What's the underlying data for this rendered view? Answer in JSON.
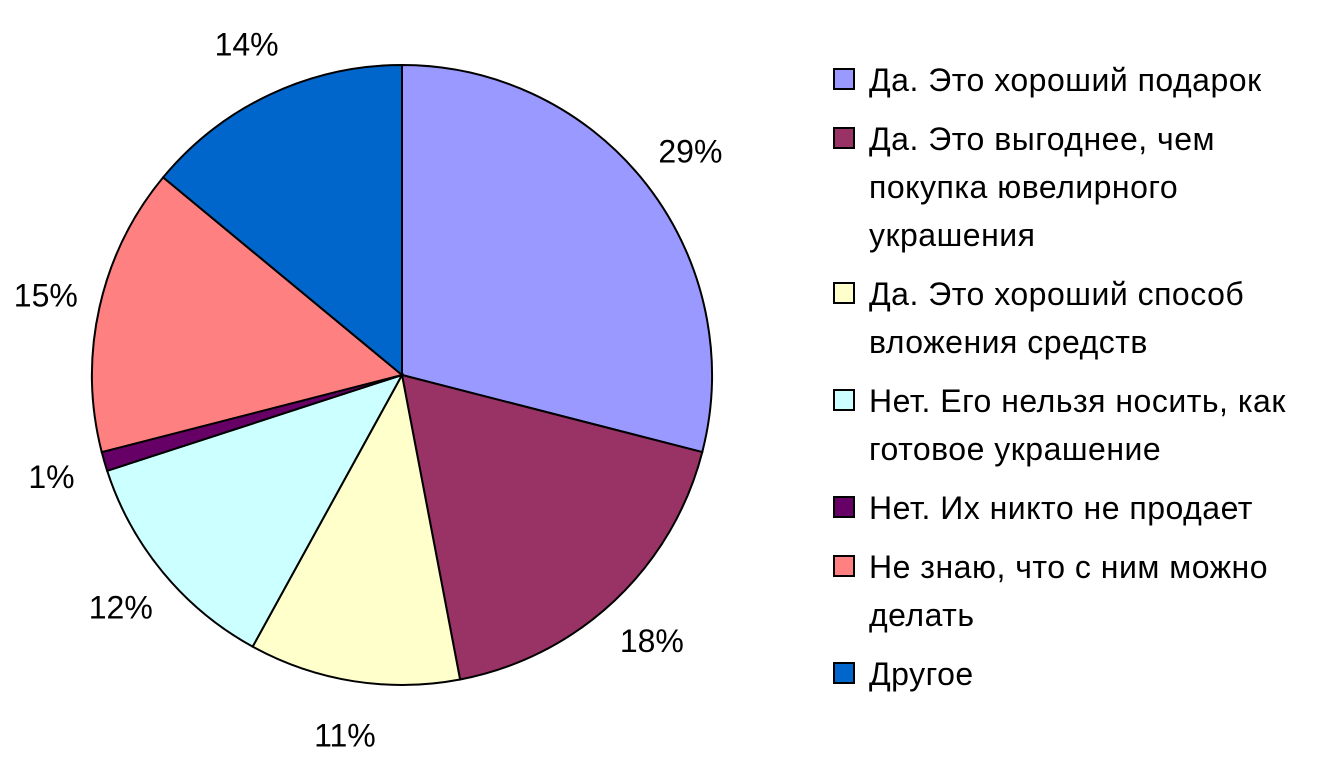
{
  "chart_data": {
    "type": "pie",
    "start_angle_deg": 90,
    "direction": "clockwise",
    "series": [
      {
        "name": "Да. Это хороший подарок",
        "value": 29,
        "label": "29%",
        "color": "#9999FF"
      },
      {
        "name": "Да. Это выгоднее, чем покупка ювелирного украшения",
        "value": 18,
        "label": "18%",
        "color": "#993366"
      },
      {
        "name": "Да. Это хороший способ вложения средств",
        "value": 11,
        "label": "11%",
        "color": "#FFFFCC"
      },
      {
        "name": "Нет. Его нельзя носить, как готовое украшение",
        "value": 12,
        "label": "12%",
        "color": "#CCFFFF"
      },
      {
        "name": "Нет. Их никто не продает",
        "value": 1,
        "label": "1%",
        "color": "#660066"
      },
      {
        "name": "Не знаю, что с ним можно делать",
        "value": 15,
        "label": "15%",
        "color": "#FF8080"
      },
      {
        "name": "Другое",
        "value": 14,
        "label": "14%",
        "color": "#0066CC"
      }
    ],
    "legend_position": "right"
  }
}
